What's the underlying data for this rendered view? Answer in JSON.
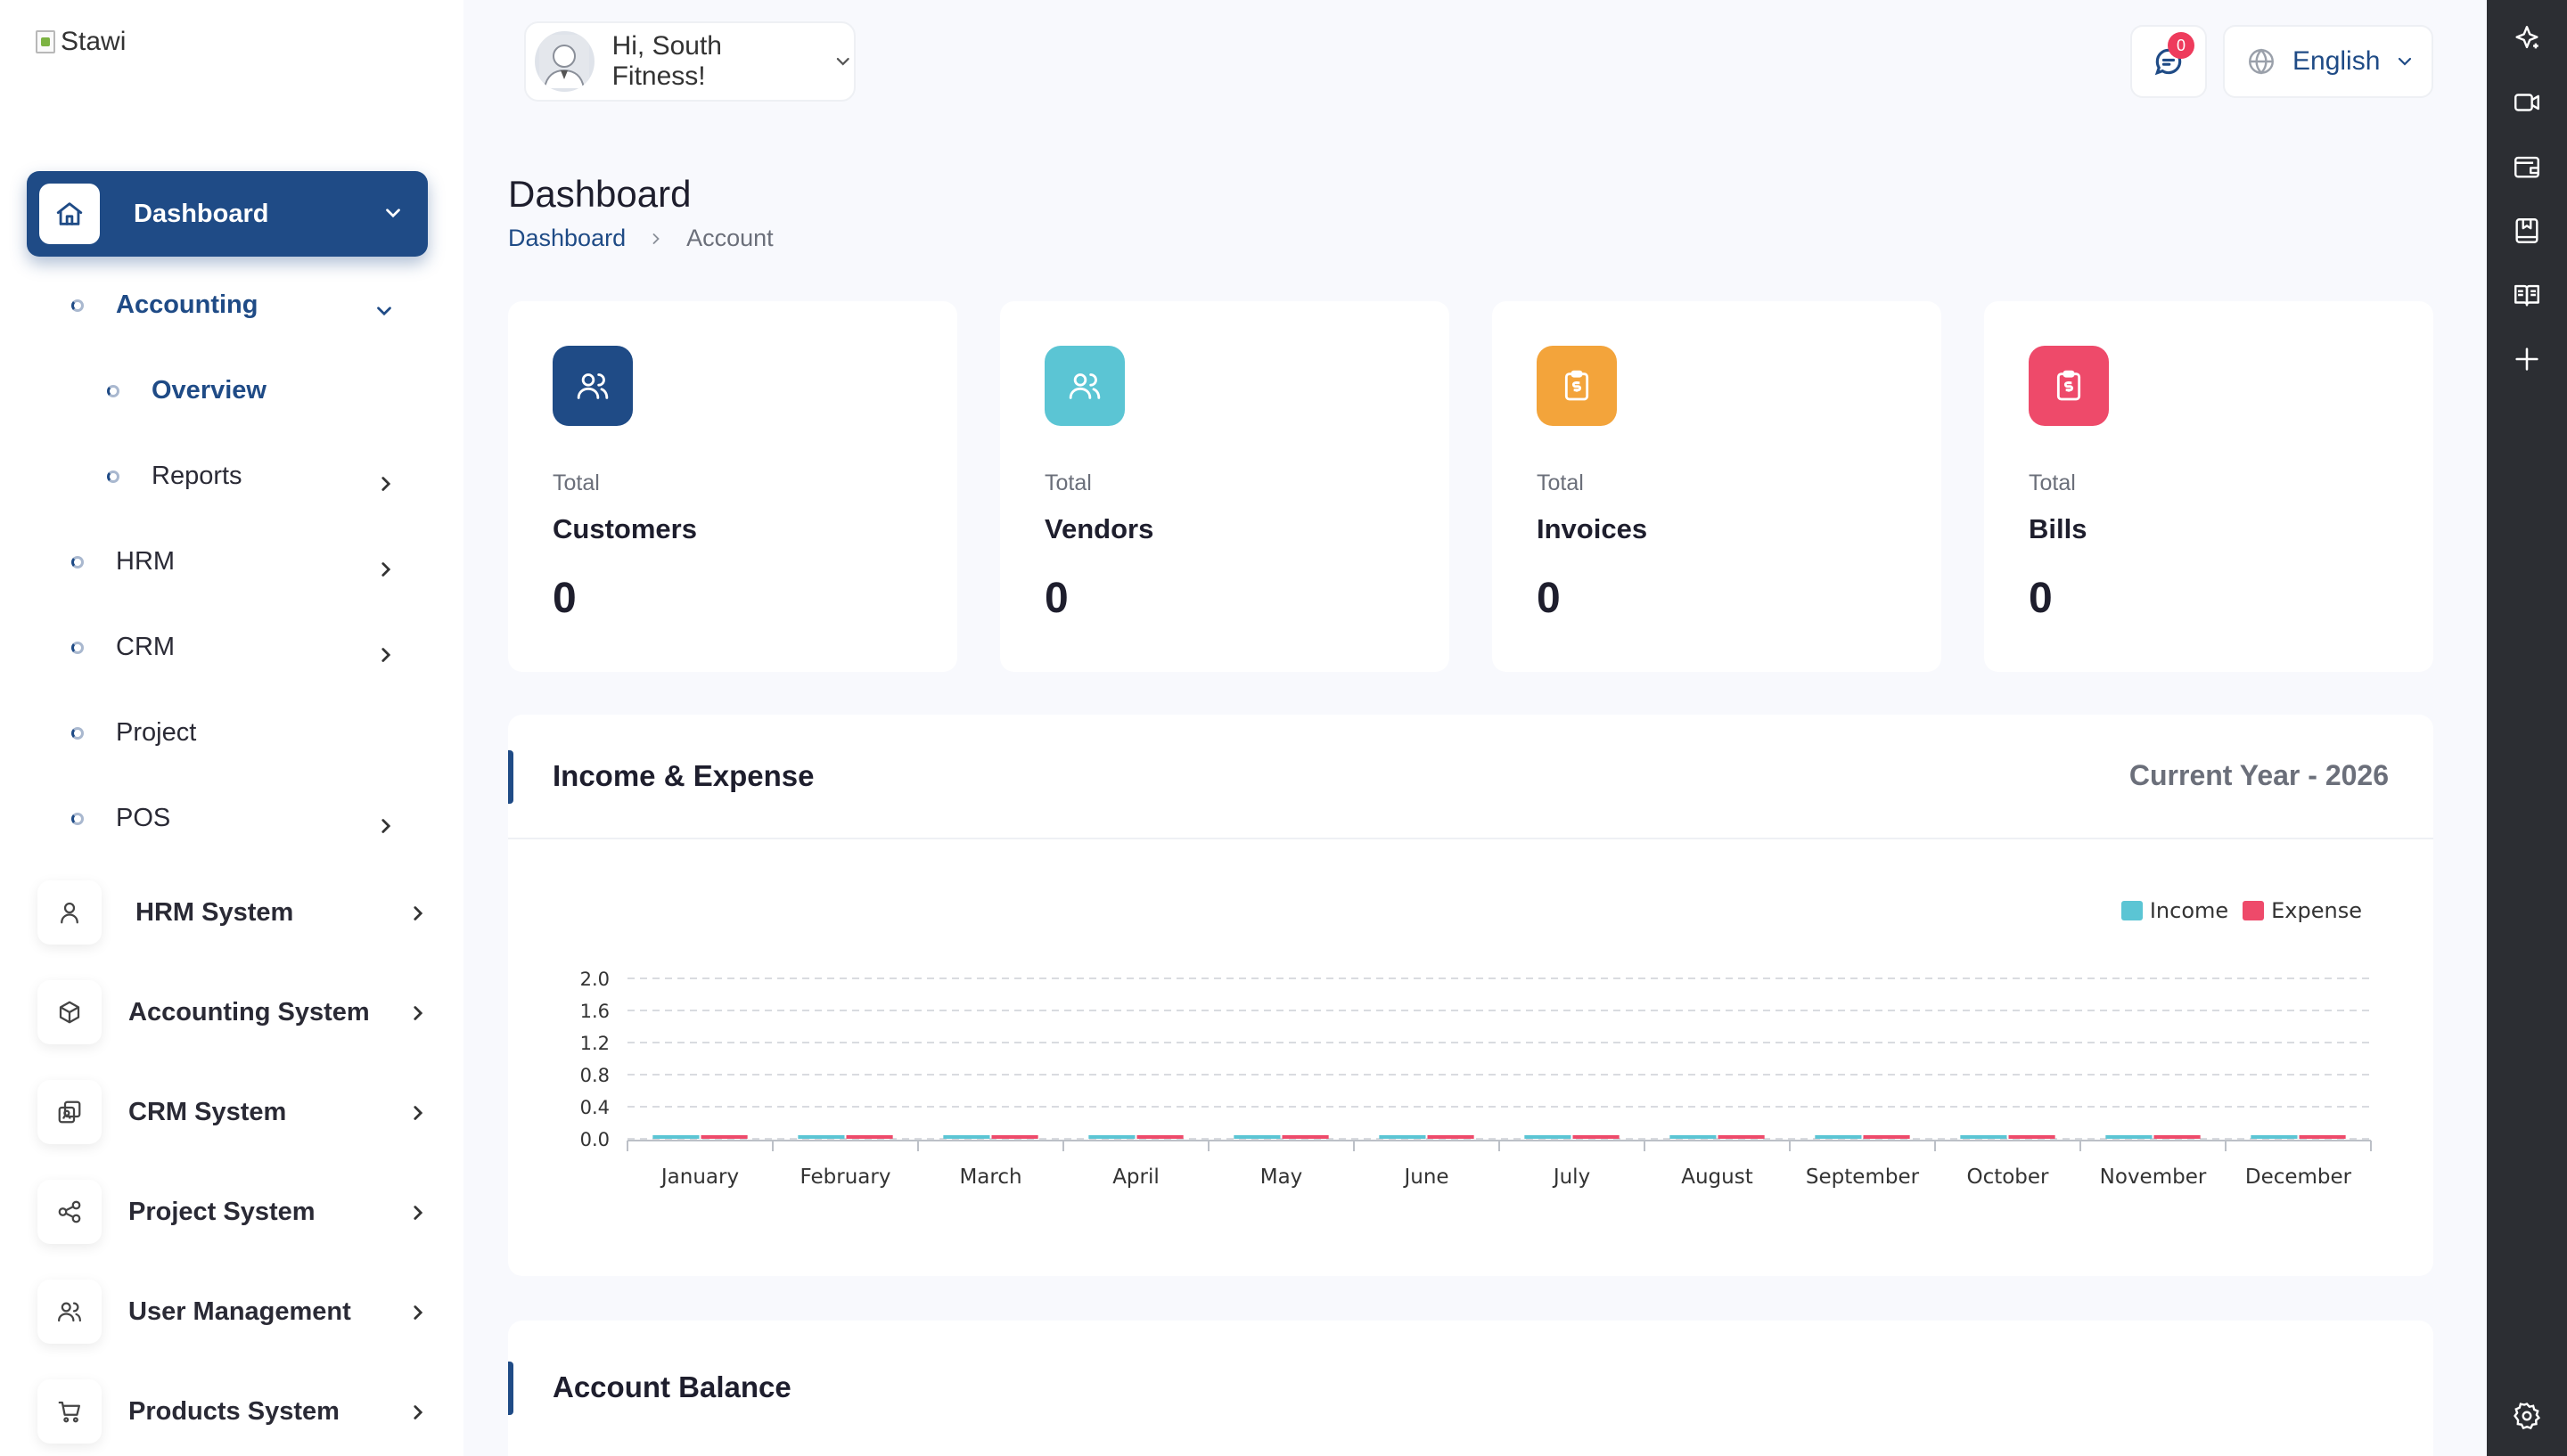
{
  "brand": {
    "logo_alt": "Stawi"
  },
  "header": {
    "greeting": "Hi, South Fitness!",
    "notifications_count": "0",
    "language": "English"
  },
  "sidebar": {
    "main": {
      "label": "Dashboard"
    },
    "sub_items": [
      {
        "label": "Accounting",
        "active": true,
        "expanded": true
      },
      {
        "label": "Overview",
        "active": true,
        "level": 2
      },
      {
        "label": "Reports",
        "level": 2
      },
      {
        "label": "HRM"
      },
      {
        "label": "CRM"
      },
      {
        "label": "Project"
      },
      {
        "label": "POS"
      }
    ],
    "systems": [
      {
        "label": "HRM System",
        "icon": "user-icon"
      },
      {
        "label": "Accounting System",
        "icon": "box-icon"
      },
      {
        "label": "CRM System",
        "icon": "crm-icon"
      },
      {
        "label": "Project System",
        "icon": "share-icon"
      },
      {
        "label": "User Management",
        "icon": "users-icon"
      },
      {
        "label": "Products System",
        "icon": "cart-icon"
      }
    ]
  },
  "page": {
    "title": "Dashboard",
    "breadcrumb": [
      "Dashboard",
      "Account"
    ]
  },
  "stats": [
    {
      "small": "Total",
      "name": "Customers",
      "value": "0",
      "color": "#1f4b86",
      "icon": "users-icon"
    },
    {
      "small": "Total",
      "name": "Vendors",
      "value": "0",
      "color": "#5bc5d4",
      "icon": "users-icon"
    },
    {
      "small": "Total",
      "name": "Invoices",
      "value": "0",
      "color": "#f3a43b",
      "icon": "invoice-icon"
    },
    {
      "small": "Total",
      "name": "Bills",
      "value": "0",
      "color": "#ee4a6a",
      "icon": "bill-icon"
    }
  ],
  "income_panel": {
    "title": "Income & Expense",
    "period": "Current Year - 2026"
  },
  "account_panel": {
    "title": "Account Balance"
  },
  "chart_data": {
    "type": "bar",
    "categories": [
      "January",
      "February",
      "March",
      "April",
      "May",
      "June",
      "July",
      "August",
      "September",
      "October",
      "November",
      "December"
    ],
    "series": [
      {
        "name": "Income",
        "color": "#5bc5d4",
        "values": [
          0,
          0,
          0,
          0,
          0,
          0,
          0,
          0,
          0,
          0,
          0,
          0
        ]
      },
      {
        "name": "Expense",
        "color": "#ee4a6a",
        "values": [
          0,
          0,
          0,
          0,
          0,
          0,
          0,
          0,
          0,
          0,
          0,
          0
        ]
      }
    ],
    "yticks": [
      "0.0",
      "0.4",
      "0.8",
      "1.2",
      "1.6",
      "2.0"
    ],
    "ylim": [
      0,
      2.0
    ],
    "grid": true,
    "legend": "top-right"
  },
  "rail_icons": [
    "sparkle-icon",
    "video-icon",
    "wallet-icon",
    "bookmark-icon",
    "book-icon",
    "plus-icon",
    "settings-icon"
  ]
}
